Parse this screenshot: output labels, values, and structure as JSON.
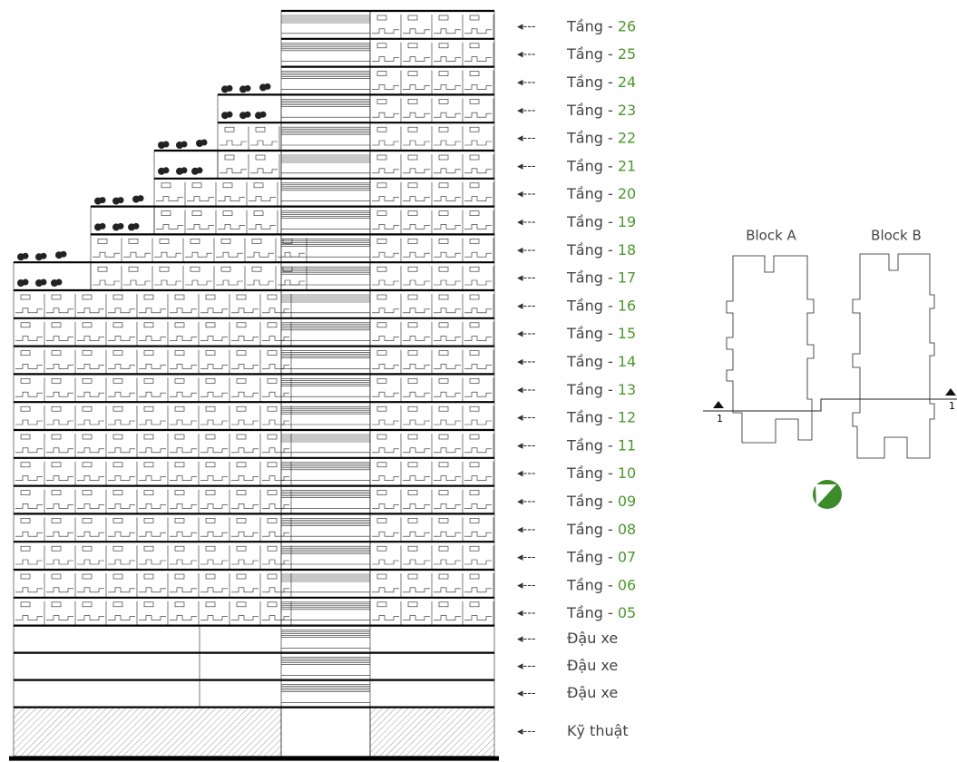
{
  "floors": [
    {
      "prefix": "Tầng - ",
      "number": "26"
    },
    {
      "prefix": "Tầng - ",
      "number": "25"
    },
    {
      "prefix": "Tầng - ",
      "number": "24"
    },
    {
      "prefix": "Tầng - ",
      "number": "23"
    },
    {
      "prefix": "Tầng - ",
      "number": "22"
    },
    {
      "prefix": "Tầng - ",
      "number": "21"
    },
    {
      "prefix": "Tầng - ",
      "number": "20"
    },
    {
      "prefix": "Tầng - ",
      "number": "19"
    },
    {
      "prefix": "Tầng - ",
      "number": "18"
    },
    {
      "prefix": "Tầng - ",
      "number": "17"
    },
    {
      "prefix": "Tầng - ",
      "number": "16"
    },
    {
      "prefix": "Tầng - ",
      "number": "15"
    },
    {
      "prefix": "Tầng - ",
      "number": "14"
    },
    {
      "prefix": "Tầng - ",
      "number": "13"
    },
    {
      "prefix": "Tầng - ",
      "number": "12"
    },
    {
      "prefix": "Tầng - ",
      "number": "11"
    },
    {
      "prefix": "Tầng - ",
      "number": "10"
    },
    {
      "prefix": "Tầng - ",
      "number": "09"
    },
    {
      "prefix": "Tầng - ",
      "number": "08"
    },
    {
      "prefix": "Tầng - ",
      "number": "07"
    },
    {
      "prefix": "Tầng - ",
      "number": "06"
    },
    {
      "prefix": "Tầng - ",
      "number": "05"
    }
  ],
  "basement": [
    "Đậu xe",
    "Đậu xe",
    "Đậu xe",
    "Kỹ thuật"
  ],
  "arrow": "◂---",
  "site_plan": {
    "block_a": "Block A",
    "block_b": "Block B",
    "section_left": "1",
    "section_right": "1"
  }
}
